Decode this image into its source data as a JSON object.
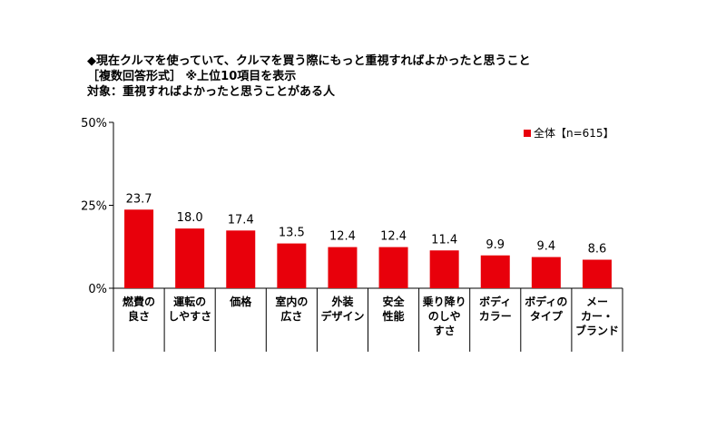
{
  "heading": {
    "title": "◆現在クルマを使っていて、クルマを買う際にもっと重視すればよかったと思うこと",
    "subtitle": "［複数回答形式］ ※上位10項目を表示",
    "target": "対象：重視すればよかったと思うことがある人"
  },
  "chart_data": {
    "type": "bar",
    "categories": [
      [
        "燃費の",
        "良さ"
      ],
      [
        "運転の",
        "しやすさ"
      ],
      [
        "価格"
      ],
      [
        "室内の",
        "広さ"
      ],
      [
        "外装",
        "デザイン"
      ],
      [
        "安全",
        "性能"
      ],
      [
        "乗り降り",
        "のしや",
        "すさ"
      ],
      [
        "ボディ",
        "カラー"
      ],
      [
        "ボディの",
        "タイプ"
      ],
      [
        "メー",
        "カー・",
        "ブランド"
      ]
    ],
    "series": [
      {
        "name": "全体【n=615】",
        "values": [
          23.7,
          18.0,
          17.4,
          13.5,
          12.4,
          12.4,
          11.4,
          9.9,
          9.4,
          8.6
        ],
        "value_labels": [
          "23.7",
          "18.0",
          "17.4",
          "13.5",
          "12.4",
          "12.4",
          "11.4",
          "9.9",
          "9.4",
          "8.6"
        ]
      }
    ],
    "ylim": [
      0,
      50
    ],
    "yticks": [
      0,
      25,
      50
    ],
    "ytick_labels": [
      "0%",
      "25%",
      "50%"
    ],
    "grid": false,
    "legend_position": "top-right",
    "bar_color": "#e8000b"
  }
}
